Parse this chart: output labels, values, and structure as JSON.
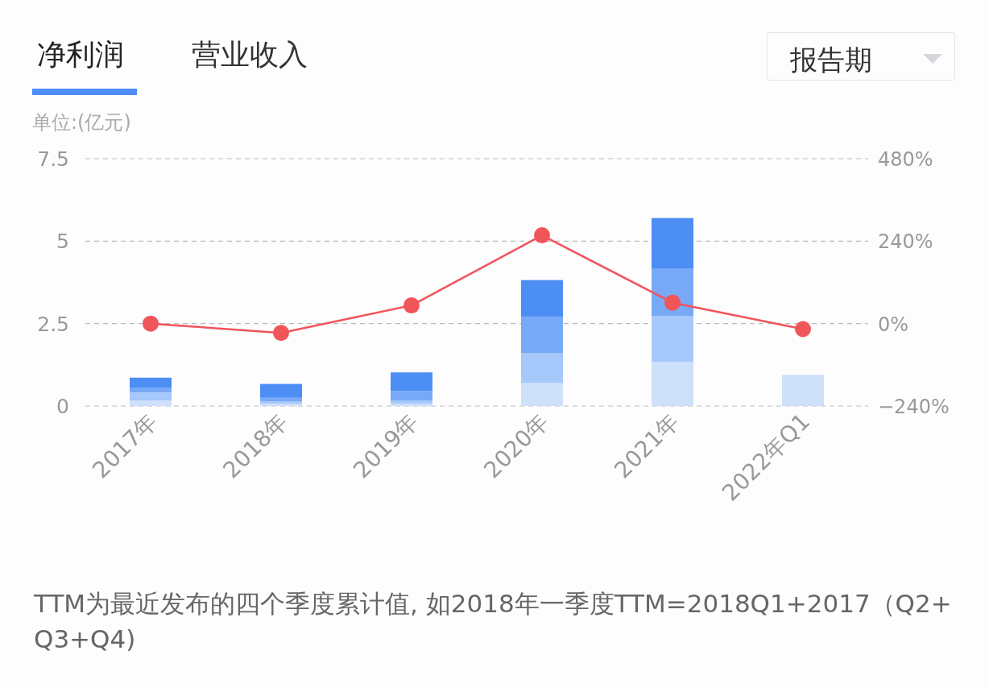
{
  "chart_data": {
    "type": "bar",
    "title": "净利润",
    "ylabel": "单位:(亿元)",
    "annotations": [
      "营业收入",
      "报告期",
      "TTM为最近发布的四个季度累计值, 如2018年一季度TTM=2018Q1+2017（Q2+Q3+Q4)"
    ],
    "categories": [
      "2017年",
      "2018年",
      "2019年",
      "2020年",
      "2021年",
      "2022年Q1"
    ],
    "stacked": true,
    "series": [
      {
        "color": "#cfe0fb",
        "values": [
          0.17,
          0.07,
          0.07,
          0.7,
          1.34,
          0.95
        ]
      },
      {
        "color": "#a6c8fb",
        "values": [
          0.24,
          0.07,
          0.1,
          0.9,
          1.39,
          null
        ]
      },
      {
        "color": "#78a9f7",
        "values": [
          0.15,
          0.11,
          0.29,
          1.1,
          1.43,
          null
        ]
      },
      {
        "color": "#4d8ef5",
        "values": [
          0.3,
          0.42,
          0.56,
          1.12,
          1.54,
          null
        ]
      },
      {
        "type": "line",
        "axis": "y2",
        "color": "#f0555a",
        "values": [
          0,
          -27,
          53,
          257,
          61,
          -16
        ]
      }
    ],
    "ylim": [
      0,
      7.5
    ],
    "yticks": [
      0,
      2.5,
      5,
      7.5
    ],
    "y2lim": [
      -240,
      480
    ],
    "y2ticks": [
      {
        "value": -240,
        "label": "−240%"
      },
      {
        "value": 0,
        "label": "0%"
      },
      {
        "value": 240,
        "label": "240%"
      },
      {
        "value": 480,
        "label": "480%"
      }
    ],
    "grid": "y",
    "marker": "circle"
  }
}
